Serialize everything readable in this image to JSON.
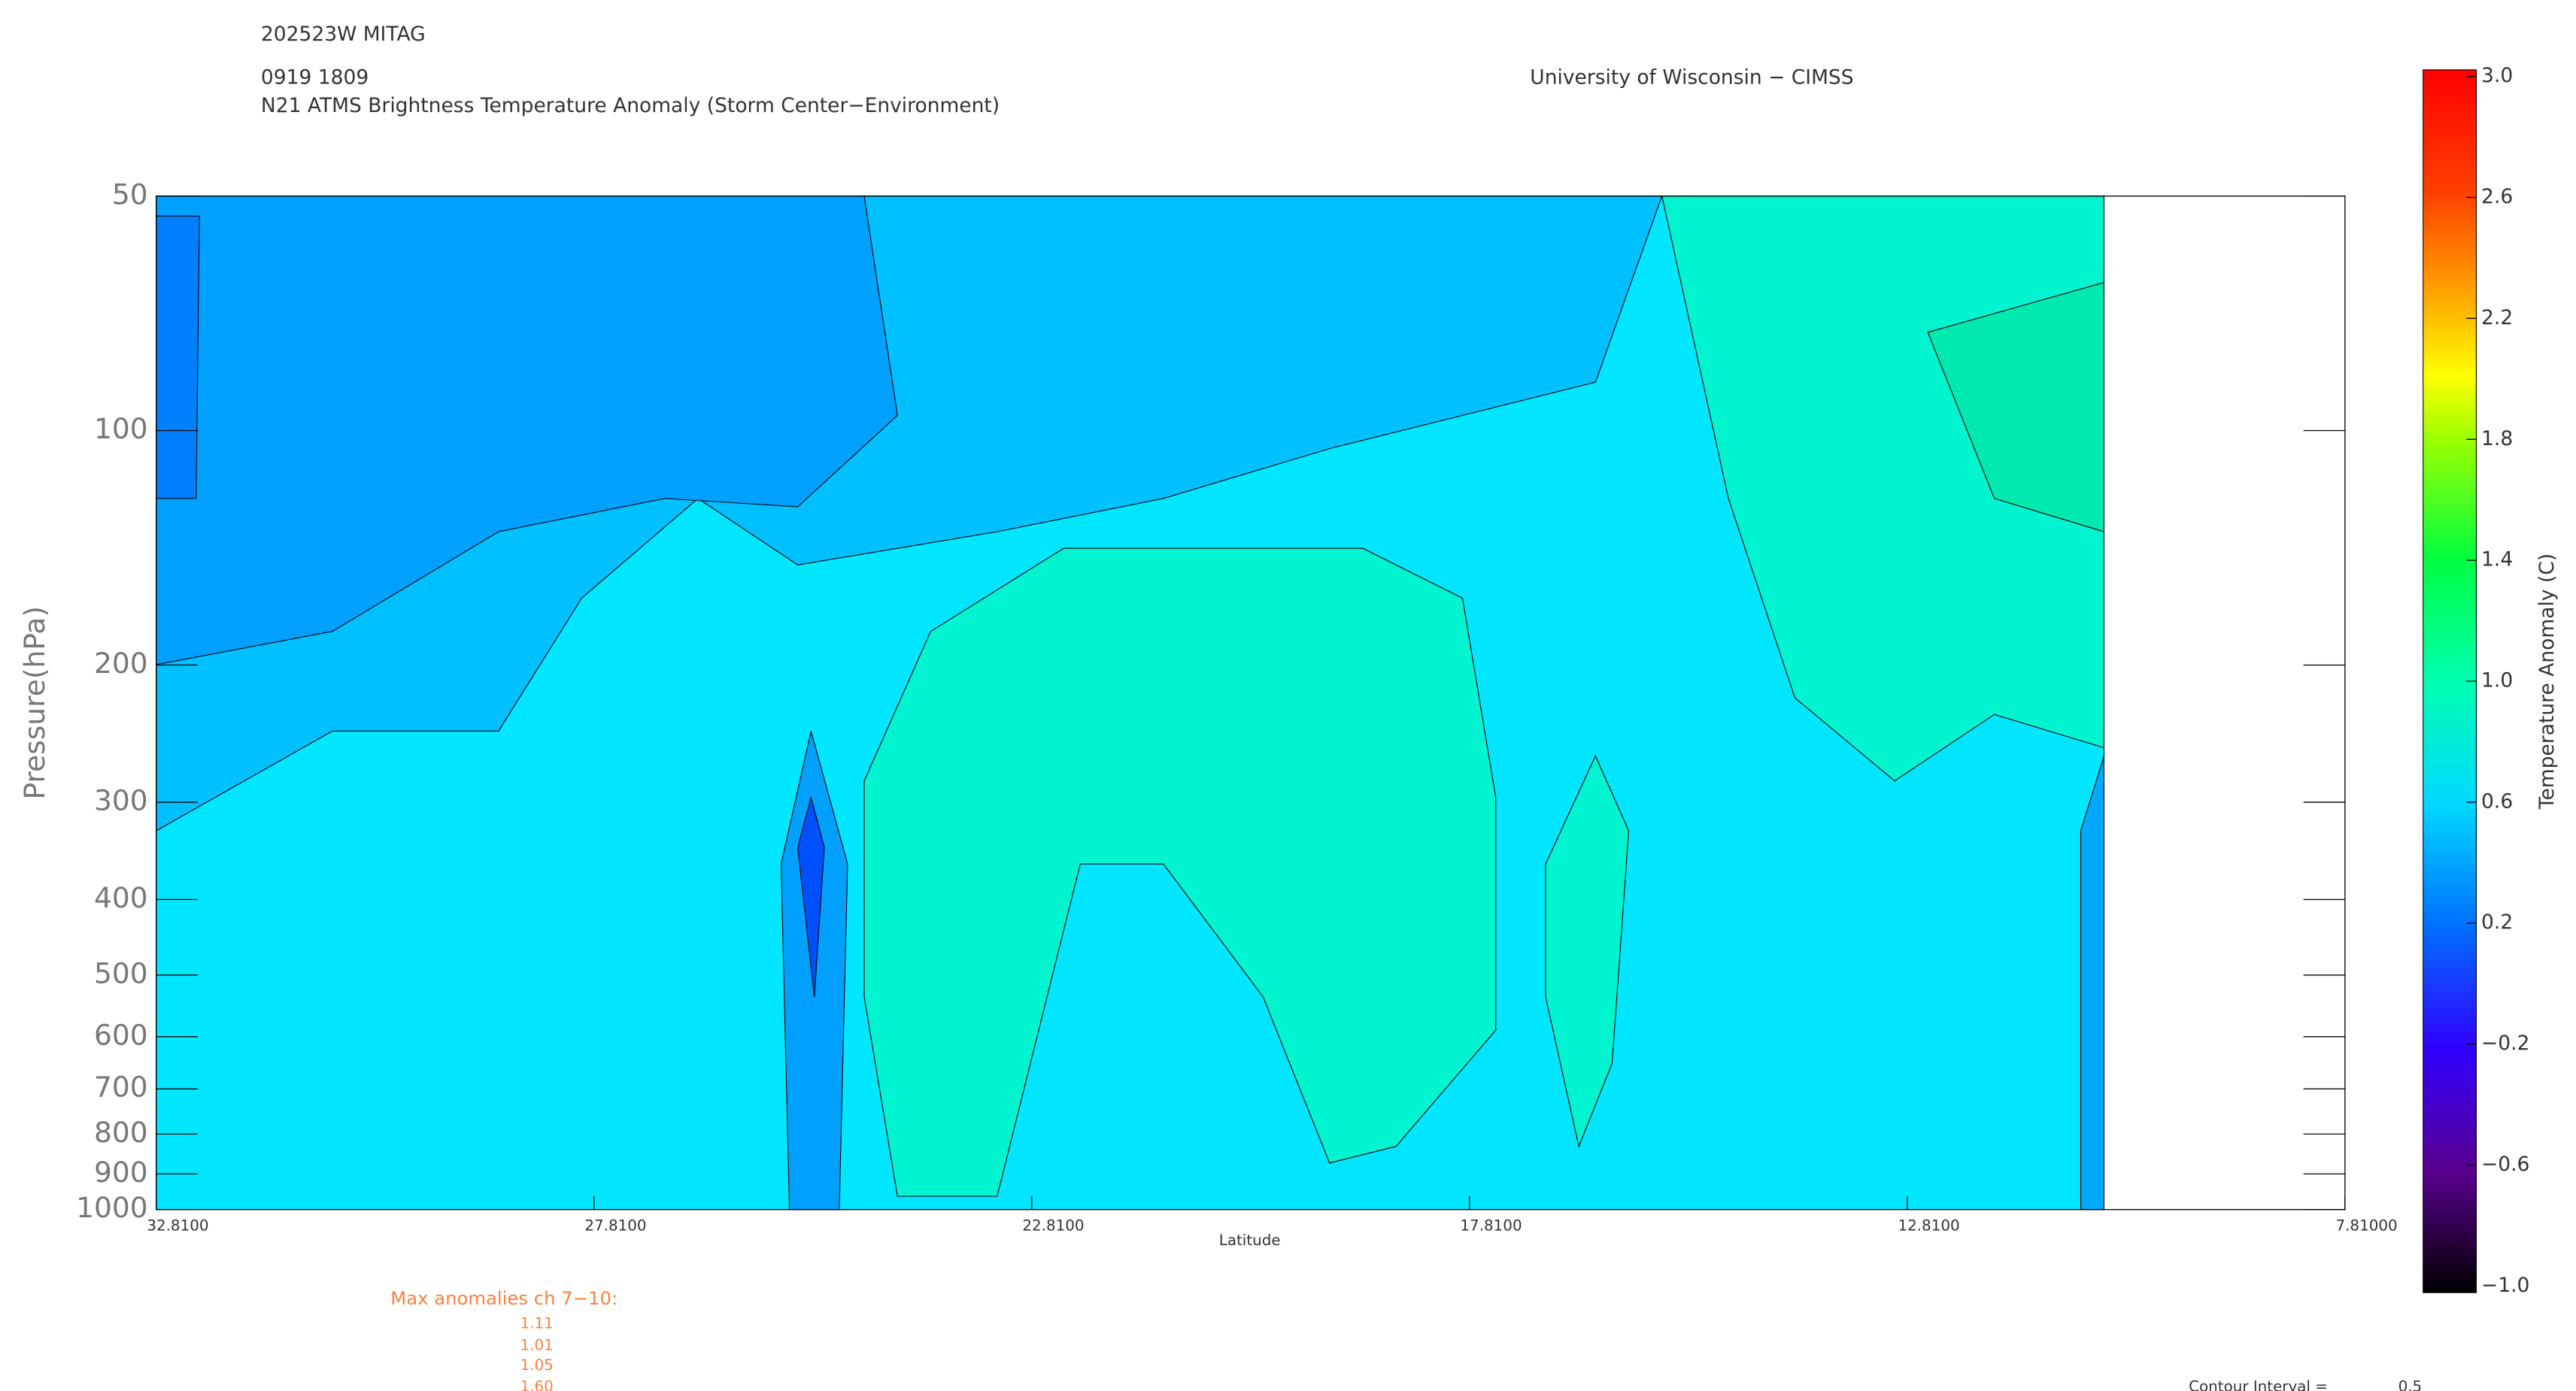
{
  "chart_data": {
    "type": "contour",
    "header": [
      "202523W MITAG",
      "0919 1809"
    ],
    "title": "N21 ATMS Brightness Temperature Anomaly (Storm Center−Environment)",
    "credit": "University of Wisconsin − CIMSS",
    "x_label": "Latitude",
    "y_label": "Pressure(hPa)",
    "xlim": [
      32.81,
      7.81
    ],
    "xticks": [
      {
        "value": 32.81,
        "label": "32.8100"
      },
      {
        "value": 27.81,
        "label": "27.8100"
      },
      {
        "value": 22.81,
        "label": "22.8100"
      },
      {
        "value": 17.81,
        "label": "17.8100"
      },
      {
        "value": 12.81,
        "label": "12.8100"
      },
      {
        "value": 7.81,
        "label": "7.81000"
      }
    ],
    "ylim": [
      1000,
      50
    ],
    "y_log_scale": true,
    "yticks": [
      50,
      100,
      200,
      300,
      400,
      500,
      600,
      700,
      800,
      900,
      1000
    ],
    "colorbar_label": "Temperature Anomaly (C)",
    "clim": [
      -1,
      3
    ],
    "cticks": [
      {
        "value": 3,
        "label": "3.0"
      },
      2.6,
      2.2,
      1.8,
      1.4,
      {
        "value": 1,
        "label": "1.0"
      },
      0.6,
      0.2,
      {
        "value": -0.2,
        "label": "−0.2"
      },
      {
        "value": -0.6,
        "label": "−0.6"
      },
      {
        "value": -1,
        "label": "−1.0"
      }
    ],
    "max_anomalies_label": "Max anomalies ch 7−10:",
    "max_anomalies": [
      "1.11",
      "1.01",
      "1.05",
      "1.60"
    ],
    "contour_interval_label": "Contour Interval =",
    "contour_interval": "0.5"
  }
}
